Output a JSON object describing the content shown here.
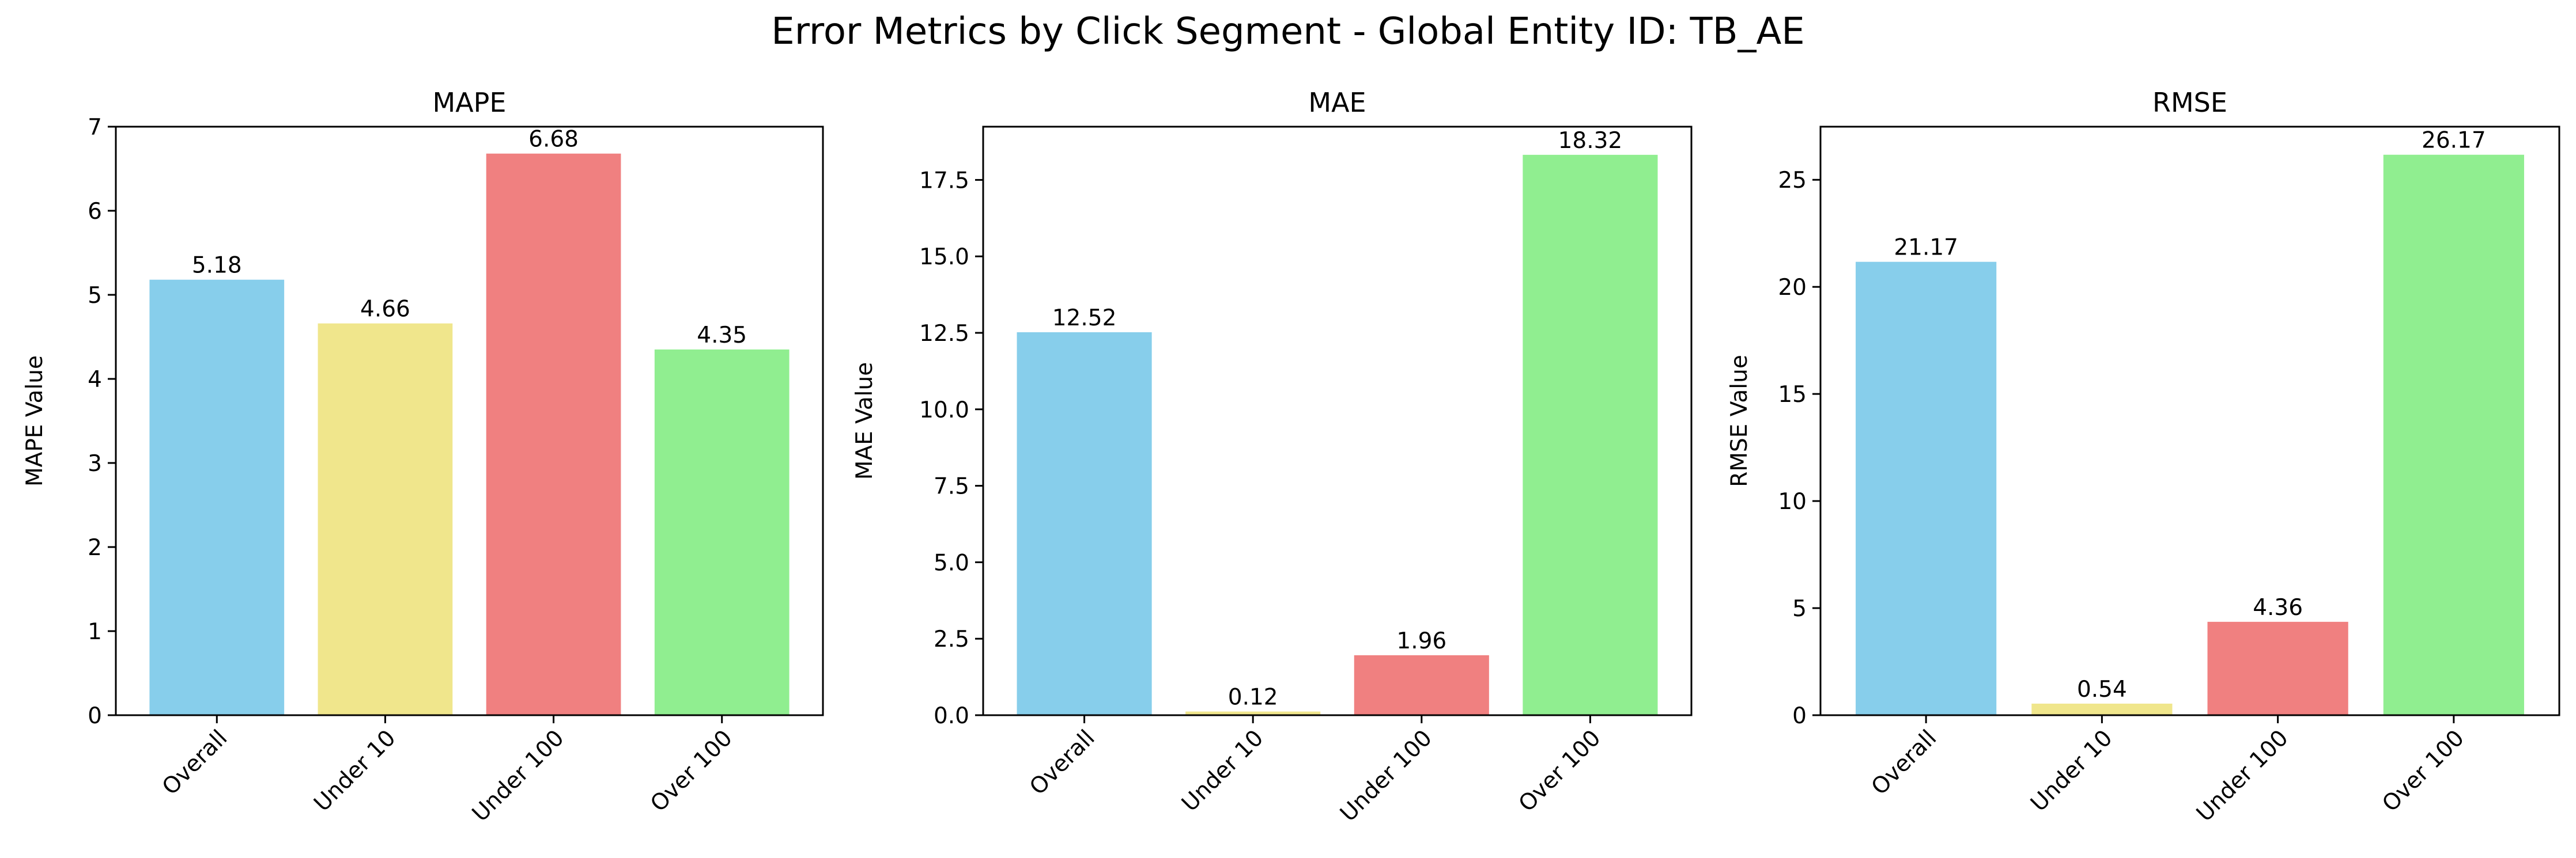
{
  "figure": {
    "title": "Error Metrics by Click Segment - Global Entity ID: TB_AE"
  },
  "colors": {
    "Overall": "#87CEEB",
    "Under 10": "#F0E68C",
    "Under 100": "#F08080",
    "Over 100": "#90EE90"
  },
  "chart_data": [
    {
      "type": "bar",
      "title": "MAPE",
      "xlabel": "",
      "ylabel": "MAPE Value",
      "categories": [
        "Overall",
        "Under 10",
        "Under 100",
        "Over 100"
      ],
      "values": [
        5.18,
        4.66,
        6.68,
        4.35
      ],
      "value_labels": [
        "5.18",
        "4.66",
        "6.68",
        "4.35"
      ],
      "ylim": [
        0,
        7
      ],
      "yticks": [
        0,
        1,
        2,
        3,
        4,
        5,
        6,
        7
      ],
      "ytick_labels": [
        "0",
        "1",
        "2",
        "3",
        "4",
        "5",
        "6",
        "7"
      ],
      "grid": false,
      "legend": "none"
    },
    {
      "type": "bar",
      "title": "MAE",
      "xlabel": "",
      "ylabel": "MAE Value",
      "categories": [
        "Overall",
        "Under 10",
        "Under 100",
        "Over 100"
      ],
      "values": [
        12.52,
        0.12,
        1.96,
        18.32
      ],
      "value_labels": [
        "12.52",
        "0.12",
        "1.96",
        "18.32"
      ],
      "ylim": [
        0,
        19.24
      ],
      "yticks": [
        0,
        2.5,
        5,
        7.5,
        10,
        12.5,
        15,
        17.5
      ],
      "ytick_labels": [
        "0.0",
        "2.5",
        "5.0",
        "7.5",
        "10.0",
        "12.5",
        "15.0",
        "17.5"
      ],
      "grid": false,
      "legend": "none"
    },
    {
      "type": "bar",
      "title": "RMSE",
      "xlabel": "",
      "ylabel": "RMSE Value",
      "categories": [
        "Overall",
        "Under 10",
        "Under 100",
        "Over 100"
      ],
      "values": [
        21.17,
        0.54,
        4.36,
        26.17
      ],
      "value_labels": [
        "21.17",
        "0.54",
        "4.36",
        "26.17"
      ],
      "ylim": [
        0,
        27.48
      ],
      "yticks": [
        0,
        5,
        10,
        15,
        20,
        25
      ],
      "ytick_labels": [
        "0",
        "5",
        "10",
        "15",
        "20",
        "25"
      ],
      "grid": false,
      "legend": "none"
    }
  ]
}
